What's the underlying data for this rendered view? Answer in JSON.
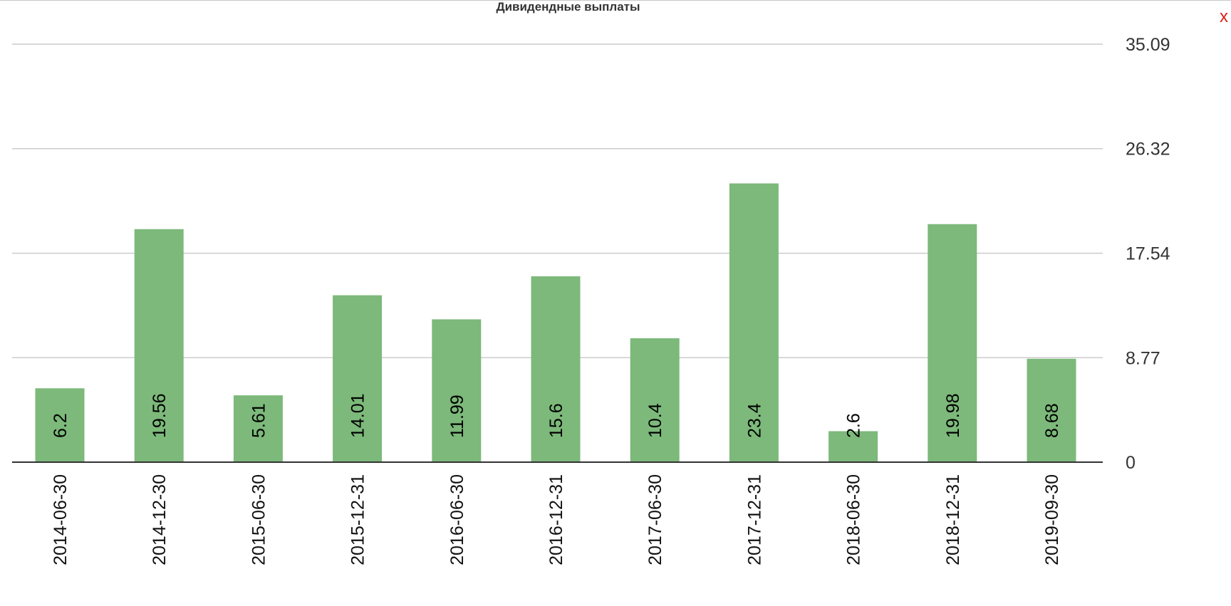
{
  "close_label": "x",
  "chart_data": {
    "type": "bar",
    "title": "Дивидендные выплаты",
    "xlabel": "",
    "ylabel": "",
    "categories": [
      "2014-06-30",
      "2014-12-30",
      "2015-06-30",
      "2015-12-31",
      "2016-06-30",
      "2016-12-31",
      "2017-06-30",
      "2017-12-31",
      "2018-06-30",
      "2018-12-31",
      "2019-09-30"
    ],
    "values": [
      6.2,
      19.56,
      5.61,
      14.01,
      11.99,
      15.6,
      10.4,
      23.4,
      2.6,
      19.98,
      8.68
    ],
    "ylim": [
      0,
      35.09
    ],
    "yticks": [
      0,
      8.77,
      17.54,
      26.32,
      35.09
    ],
    "ytick_labels": [
      "0",
      "8.77",
      "17.54",
      "26.32",
      "35.09"
    ],
    "y_axis_side": "right",
    "grid": true,
    "bar_color": "#7cb97a",
    "gridline_color": "#cccccc",
    "baseline_color": "#333333"
  }
}
